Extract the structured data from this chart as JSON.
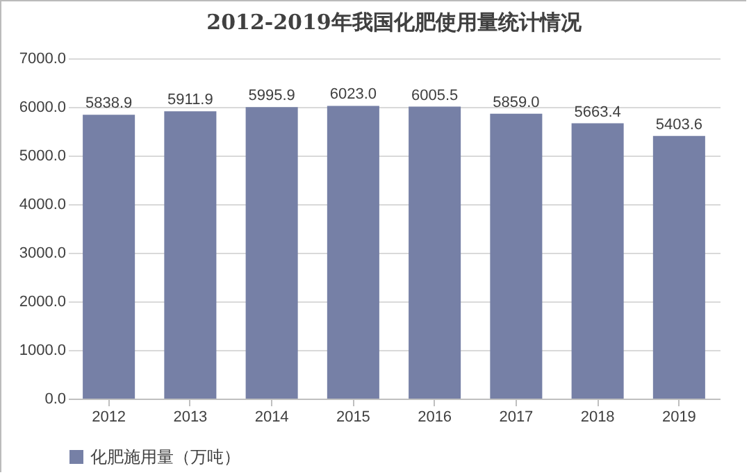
{
  "chart_data": {
    "type": "bar",
    "title": "2012-2019年我国化肥使用量统计情况",
    "categories": [
      "2012",
      "2013",
      "2014",
      "2015",
      "2016",
      "2017",
      "2018",
      "2019"
    ],
    "series": [
      {
        "name": "化肥施用量（万吨）",
        "color": "#7680a6",
        "values": [
          5838.9,
          5911.9,
          5995.9,
          6023.0,
          6005.5,
          5859.0,
          5663.4,
          5403.6
        ],
        "value_labels": [
          "5838.9",
          "5911.9",
          "5995.9",
          "6023.0",
          "6005.5",
          "5859.0",
          "5663.4",
          "5403.6"
        ]
      }
    ],
    "ylim": [
      0,
      7000
    ],
    "yticks": [
      {
        "value": 0,
        "label": "0.0"
      },
      {
        "value": 1000,
        "label": "1000.0"
      },
      {
        "value": 2000,
        "label": "2000.0"
      },
      {
        "value": 3000,
        "label": "3000.0"
      },
      {
        "value": 4000,
        "label": "4000.0"
      },
      {
        "value": 5000,
        "label": "5000.0"
      },
      {
        "value": 6000,
        "label": "6000.0"
      },
      {
        "value": 7000,
        "label": "7000.0"
      }
    ],
    "grid": "y",
    "legend": "bottom"
  }
}
